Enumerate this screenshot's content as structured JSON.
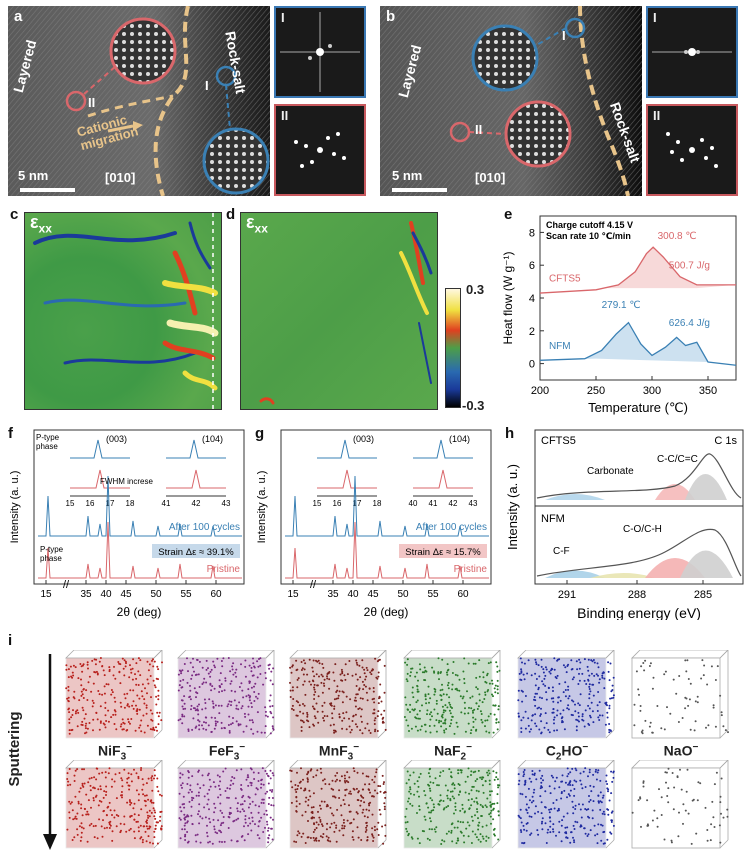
{
  "panel_labels": {
    "a": "a",
    "b": "b",
    "c": "c",
    "d": "d",
    "e": "e",
    "f": "f",
    "g": "g",
    "h": "h",
    "i": "i"
  },
  "tem": {
    "a": {
      "layered": "Layered",
      "rocksalt": "Rock-salt",
      "migration": "Cationic\nmigration",
      "scale": "5 nm",
      "zone": "[010]",
      "region1": "I",
      "region2": "II"
    },
    "b": {
      "layered": "Layered",
      "rocksalt": "Rock-salt",
      "scale": "5 nm",
      "zone": "[010]",
      "region1": "I",
      "region2": "II"
    }
  },
  "fft_labels": {
    "a1": "I",
    "a2": "II",
    "b1": "I",
    "b2": "II"
  },
  "strain": {
    "label_c": "ε",
    "sub_c": "xx",
    "label_d": "ε",
    "sub_d": "xx",
    "cbar_max": "0.3",
    "cbar_min": "-0.3"
  },
  "chart_data": [
    {
      "id": "e",
      "type": "line",
      "annotation1": "Charge cutoff 4.15 V",
      "annotation2": "Scan rate 10 ℃/min",
      "xlabel": "Temperature (℃)",
      "ylabel": "Heat flow (W g⁻¹)",
      "xlim": [
        200,
        375
      ],
      "ylim": [
        -1,
        9
      ],
      "xticks": [
        "200",
        "250",
        "300",
        "350"
      ],
      "yticks": [
        "0",
        "2",
        "4",
        "6",
        "8"
      ],
      "series": [
        {
          "name": "CFTS5",
          "color": "#d9676b",
          "peak": "300.8 ℃",
          "enthalpy": "500.7 J/g"
        },
        {
          "name": "NFM",
          "color": "#3a80b4",
          "peak": "279.1 ℃",
          "enthalpy": "626.4 J/g"
        }
      ]
    },
    {
      "id": "f",
      "type": "line",
      "xlabel": "2θ (deg)",
      "ylabel": "Intensity (a. u.)",
      "xticks": [
        "15",
        "35",
        "40",
        "45",
        "50",
        "55",
        "60"
      ],
      "inset_left_ticks": [
        "15",
        "16",
        "17",
        "18"
      ],
      "inset_right_ticks": [
        "41",
        "42",
        "43"
      ],
      "inset_left_peak": "(003)",
      "inset_right_peak": "(104)",
      "ptype": "P-type\nphase",
      "fwhm": "FWHM increse",
      "strain": "Strain Δε ≈ 39.1%",
      "ptype2": "P-type\nphase",
      "series": [
        {
          "name": "After 100 cycles",
          "color": "#3a80b4"
        },
        {
          "name": "Pristine",
          "color": "#d9676b"
        }
      ]
    },
    {
      "id": "g",
      "type": "line",
      "xlabel": "2θ (deg)",
      "ylabel": "Intensity (a. u.)",
      "xticks": [
        "15",
        "35",
        "40",
        "45",
        "50",
        "55",
        "60"
      ],
      "inset_left_ticks": [
        "15",
        "16",
        "17",
        "18"
      ],
      "inset_right_ticks": [
        "40",
        "41",
        "42",
        "43"
      ],
      "inset_left_peak": "(003)",
      "inset_right_peak": "(104)",
      "strain": "Strain Δε ≈ 15.7%",
      "series": [
        {
          "name": "After 100 cycles",
          "color": "#3a80b4"
        },
        {
          "name": "Pristine",
          "color": "#d9676b"
        }
      ]
    },
    {
      "id": "h",
      "type": "line",
      "title": "C 1s",
      "xlabel": "Binding energy (eV)",
      "ylabel": "Intensity (a. u.)",
      "xticks": [
        "291",
        "288",
        "285"
      ],
      "top_name": "CFTS5",
      "bottom_name": "NFM",
      "labels": {
        "cc": "C-C/C=C",
        "carbonate": "Carbonate",
        "cf": "C-F",
        "coch": "C-O/C-H"
      }
    }
  ],
  "tof": {
    "direction": "Sputtering",
    "species": [
      {
        "sub1": "NiF",
        "sub2": "3",
        "charge": "−",
        "color": "#b8201c"
      },
      {
        "sub1": "FeF",
        "sub2": "3",
        "charge": "−",
        "color": "#7a2a82"
      },
      {
        "sub1": "MnF",
        "sub2": "3",
        "charge": "−",
        "color": "#7a1f1c"
      },
      {
        "sub1": "NaF",
        "sub2": "2",
        "charge": "−",
        "color": "#2a7a2a"
      },
      {
        "sub1": "C",
        "sub2": "2",
        "sub3": "HO",
        "charge": "−",
        "color": "#1f2aa0"
      },
      {
        "sub1": "NaO",
        "sub2": "",
        "charge": "−",
        "color": "#555555"
      }
    ]
  }
}
